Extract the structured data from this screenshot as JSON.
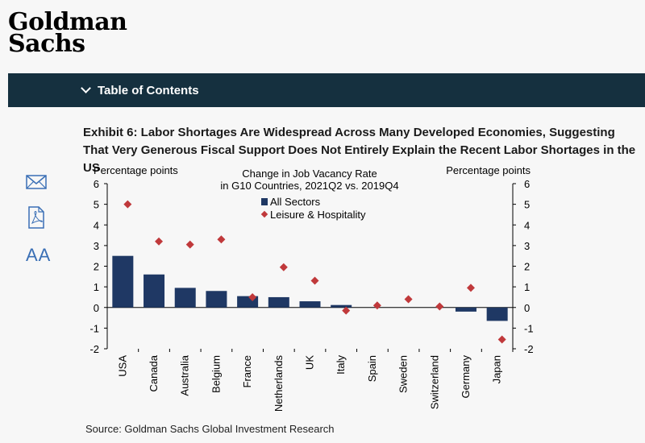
{
  "brand": {
    "line1": "Goldman",
    "line2": "Sachs"
  },
  "toc": {
    "label": "Table of Contents"
  },
  "exhibit": {
    "title": "Exhibit 6: Labor Shortages Are Widespread Across Many Developed Economies, Suggesting That Very Generous Fiscal Support Does Not Entirely Explain the Recent Labor Shortages in the US"
  },
  "sidebar": {
    "icons": [
      "mail-icon",
      "pdf-icon",
      "text-size-icon"
    ],
    "text_size_label": "AA"
  },
  "source": "Source: Goldman Sachs Global Investment Research",
  "chart_data": {
    "type": "bar",
    "title_line1": "Change in Job Vacancy Rate",
    "title_line2": "in G10 Countries, 2021Q2 vs. 2019Q4",
    "ylabel_left": "Percentage points",
    "ylabel_right": "Percentage points",
    "ylim": [
      -2,
      6
    ],
    "yticks": [
      -2,
      -1,
      0,
      1,
      2,
      3,
      4,
      5,
      6
    ],
    "categories": [
      "USA",
      "Canada",
      "Australia",
      "Belgium",
      "France",
      "Netherlands",
      "UK",
      "Italy",
      "Spain",
      "Sweden",
      "Switzerland",
      "Germany",
      "Japan"
    ],
    "series": [
      {
        "name": "All Sectors",
        "kind": "bar",
        "color": "#1f3864",
        "values": [
          2.5,
          1.6,
          0.95,
          0.8,
          0.55,
          0.5,
          0.3,
          0.12,
          0.0,
          0.0,
          0.0,
          -0.2,
          -0.65
        ]
      },
      {
        "name": "Leisure & Hospitality",
        "kind": "marker",
        "color": "#c0393b",
        "values": [
          5.0,
          3.2,
          3.05,
          3.3,
          0.5,
          1.95,
          1.3,
          -0.15,
          0.1,
          0.4,
          0.05,
          0.95,
          -1.55
        ]
      }
    ],
    "legend_position": "top-center"
  }
}
